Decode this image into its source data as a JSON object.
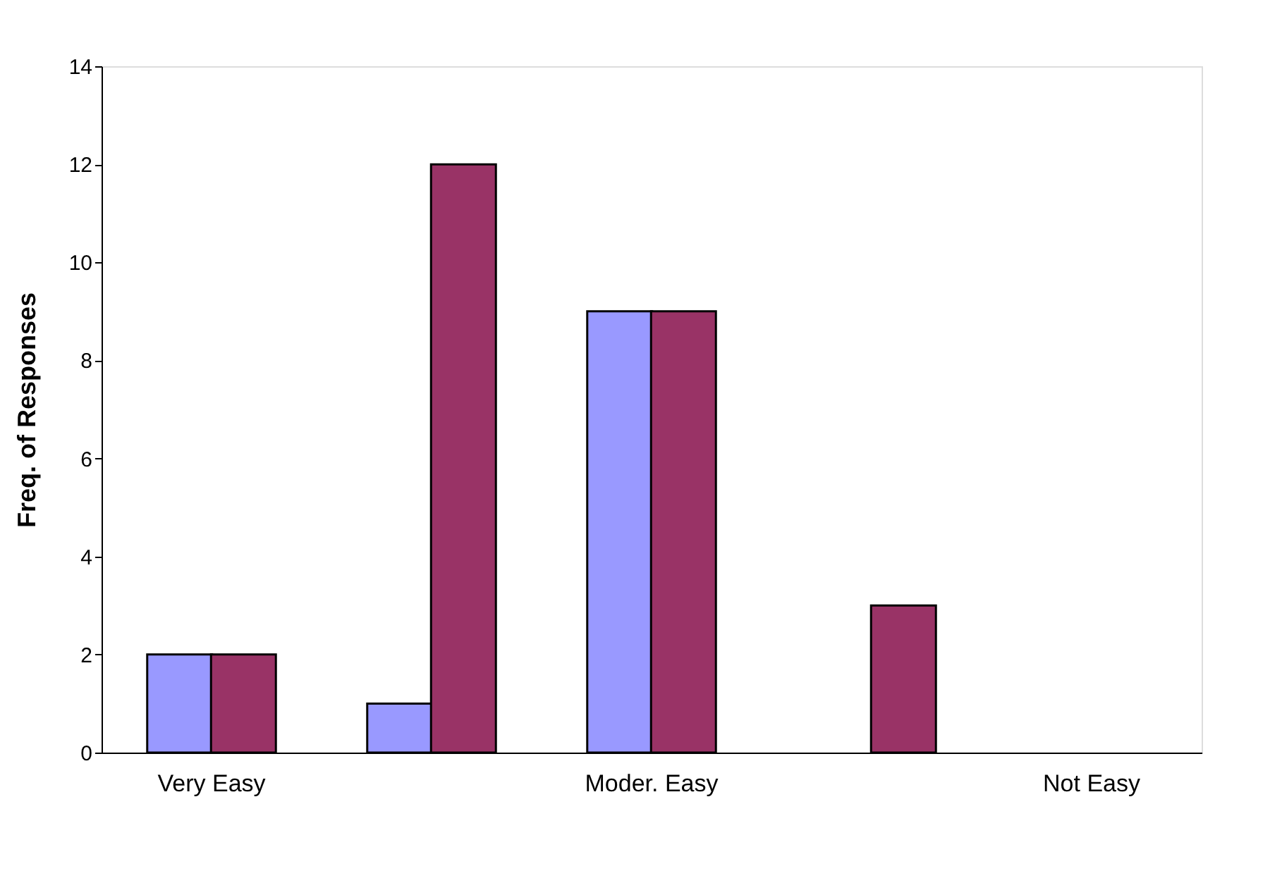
{
  "chart_data": {
    "type": "bar",
    "ylabel": "Freq. of Responses",
    "categories": [
      "Very Easy",
      null,
      "Moder. Easy",
      null,
      "Not Easy"
    ],
    "series": [
      {
        "color": "#9999ff",
        "values": [
          2,
          1,
          9,
          null,
          null
        ]
      },
      {
        "color": "#993366",
        "values": [
          2,
          12,
          9,
          3,
          null
        ]
      }
    ],
    "ylim": [
      0,
      14
    ],
    "yticks": [
      0,
      2,
      4,
      6,
      8,
      10,
      12,
      14
    ],
    "grid": false,
    "legend": false
  }
}
